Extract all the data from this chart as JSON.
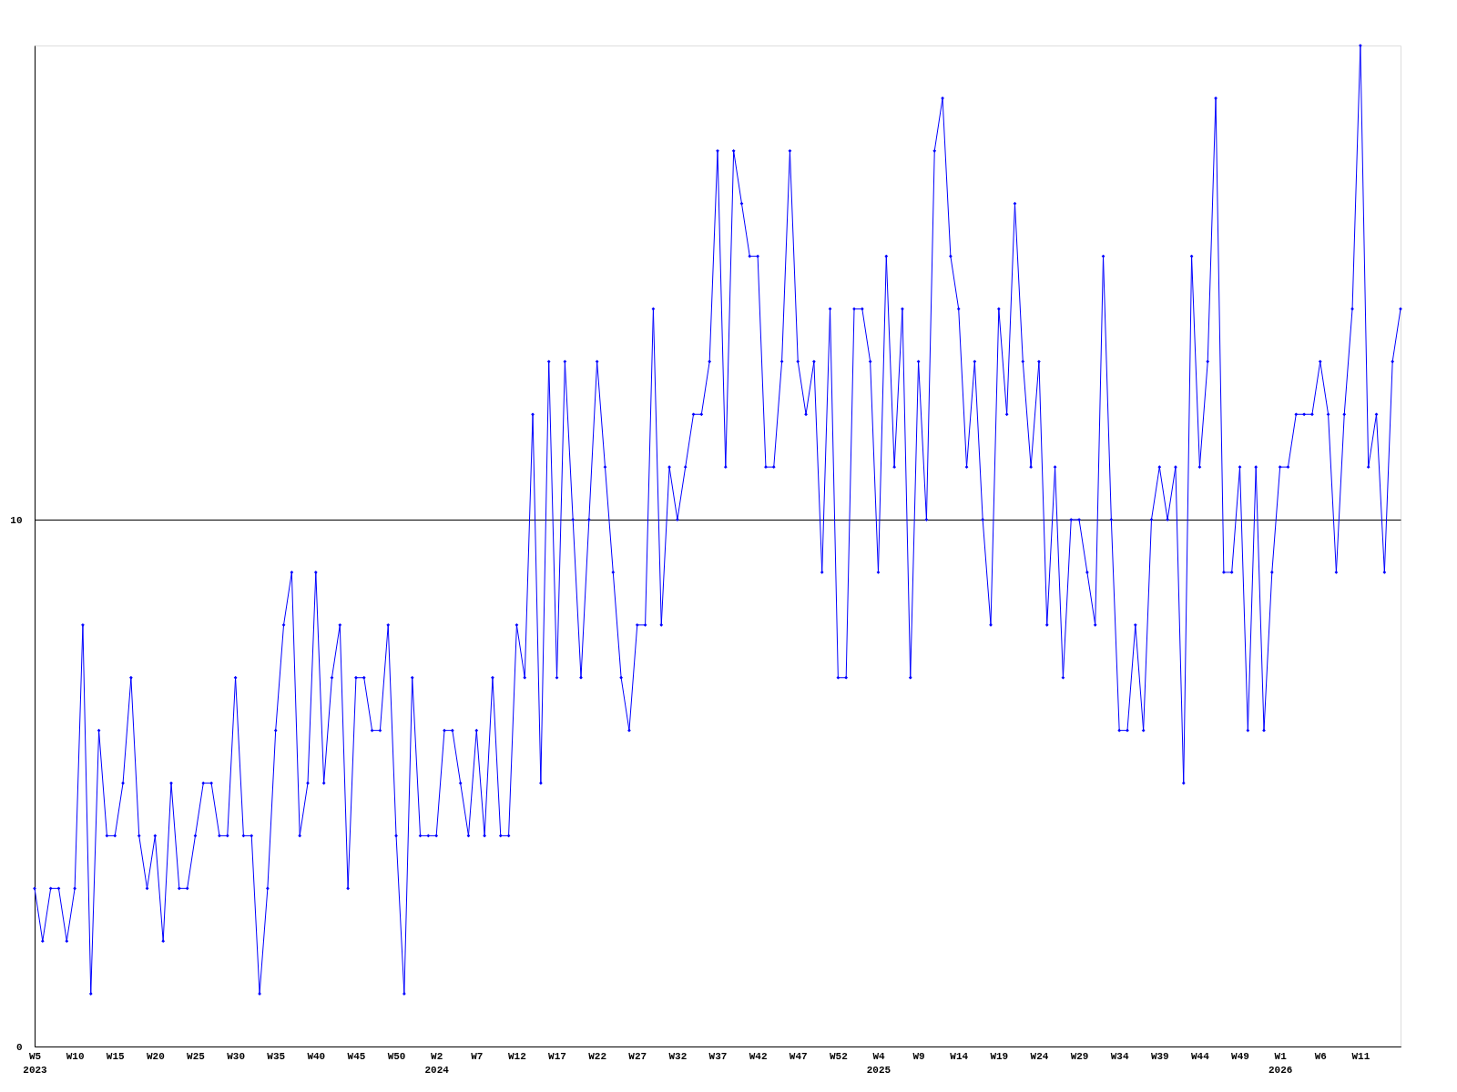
{
  "chart_data": {
    "type": "line",
    "categories": [
      "W5\n2023",
      null,
      null,
      null,
      null,
      "W10",
      null,
      null,
      null,
      null,
      "W15",
      null,
      null,
      null,
      null,
      "W20",
      null,
      null,
      null,
      null,
      "W25",
      null,
      null,
      null,
      null,
      "W30",
      null,
      null,
      null,
      null,
      "W35",
      null,
      null,
      null,
      null,
      "W40",
      null,
      null,
      null,
      null,
      "W45",
      null,
      null,
      null,
      null,
      "W50",
      null,
      null,
      null,
      null,
      "W2\n2024",
      null,
      null,
      null,
      null,
      "W7",
      null,
      null,
      null,
      null,
      "W12",
      null,
      null,
      null,
      null,
      "W17",
      null,
      null,
      null,
      null,
      "W22",
      null,
      null,
      null,
      null,
      "W27",
      null,
      null,
      null,
      null,
      "W32",
      null,
      null,
      null,
      null,
      "W37",
      null,
      null,
      null,
      null,
      "W42",
      null,
      null,
      null,
      null,
      "W47",
      null,
      null,
      null,
      null,
      "W52",
      null,
      null,
      null,
      null,
      "W4\n2025",
      null,
      null,
      null,
      null,
      "W9",
      null,
      null,
      null,
      null,
      "W14",
      null,
      null,
      null,
      null,
      "W19",
      null,
      null,
      null,
      null,
      "W24",
      null,
      null,
      null,
      null,
      "W29",
      null,
      null,
      null,
      null,
      "W34",
      null,
      null,
      null,
      null,
      "W39",
      null,
      null,
      null,
      null,
      "W44",
      null,
      null,
      null,
      null,
      "W49",
      null,
      null,
      null,
      null,
      "W1\n2026",
      null,
      null,
      null,
      null,
      "W6",
      null,
      null,
      null,
      null,
      "W11",
      null,
      null,
      null,
      null,
      null
    ],
    "series": [
      {
        "color": "#0000ff",
        "values": [
          3,
          2,
          3,
          3,
          2,
          3,
          8,
          1,
          6,
          4,
          4,
          5,
          7,
          4,
          3,
          4,
          2,
          5,
          3,
          3,
          4,
          5,
          5,
          4,
          4,
          7,
          4,
          4,
          1,
          3,
          6,
          8,
          9,
          4,
          5,
          9,
          5,
          7,
          8,
          3,
          7,
          7,
          6,
          6,
          8,
          4,
          1,
          7,
          4,
          4,
          4,
          6,
          6,
          5,
          4,
          6,
          4,
          7,
          4,
          4,
          8,
          7,
          12,
          5,
          13,
          7,
          13,
          10,
          7,
          10,
          13,
          11,
          9,
          7,
          6,
          8,
          8,
          14,
          8,
          11,
          10,
          11,
          12,
          12,
          13,
          17,
          11,
          17,
          16,
          15,
          15,
          11,
          11,
          13,
          17,
          13,
          12,
          13,
          9,
          14,
          7,
          7,
          14,
          14,
          13,
          9,
          15,
          11,
          14,
          7,
          13,
          10,
          17,
          18,
          15,
          14,
          11,
          13,
          10,
          8,
          14,
          12,
          16,
          13,
          11,
          13,
          8,
          11,
          7,
          10,
          10,
          9,
          8,
          15,
          10,
          6,
          6,
          8,
          6,
          10,
          11,
          10,
          11,
          5,
          15,
          11,
          13,
          18,
          9,
          9,
          11,
          6,
          11,
          6,
          9,
          11,
          11,
          12,
          12,
          12,
          13,
          12,
          9,
          12,
          14,
          19,
          11,
          12,
          9,
          13,
          14
        ]
      }
    ],
    "ylim": [
      0,
      19
    ],
    "yticks": [
      0,
      10
    ],
    "grid": "y",
    "marker": "diamond",
    "line_style": "solid"
  }
}
